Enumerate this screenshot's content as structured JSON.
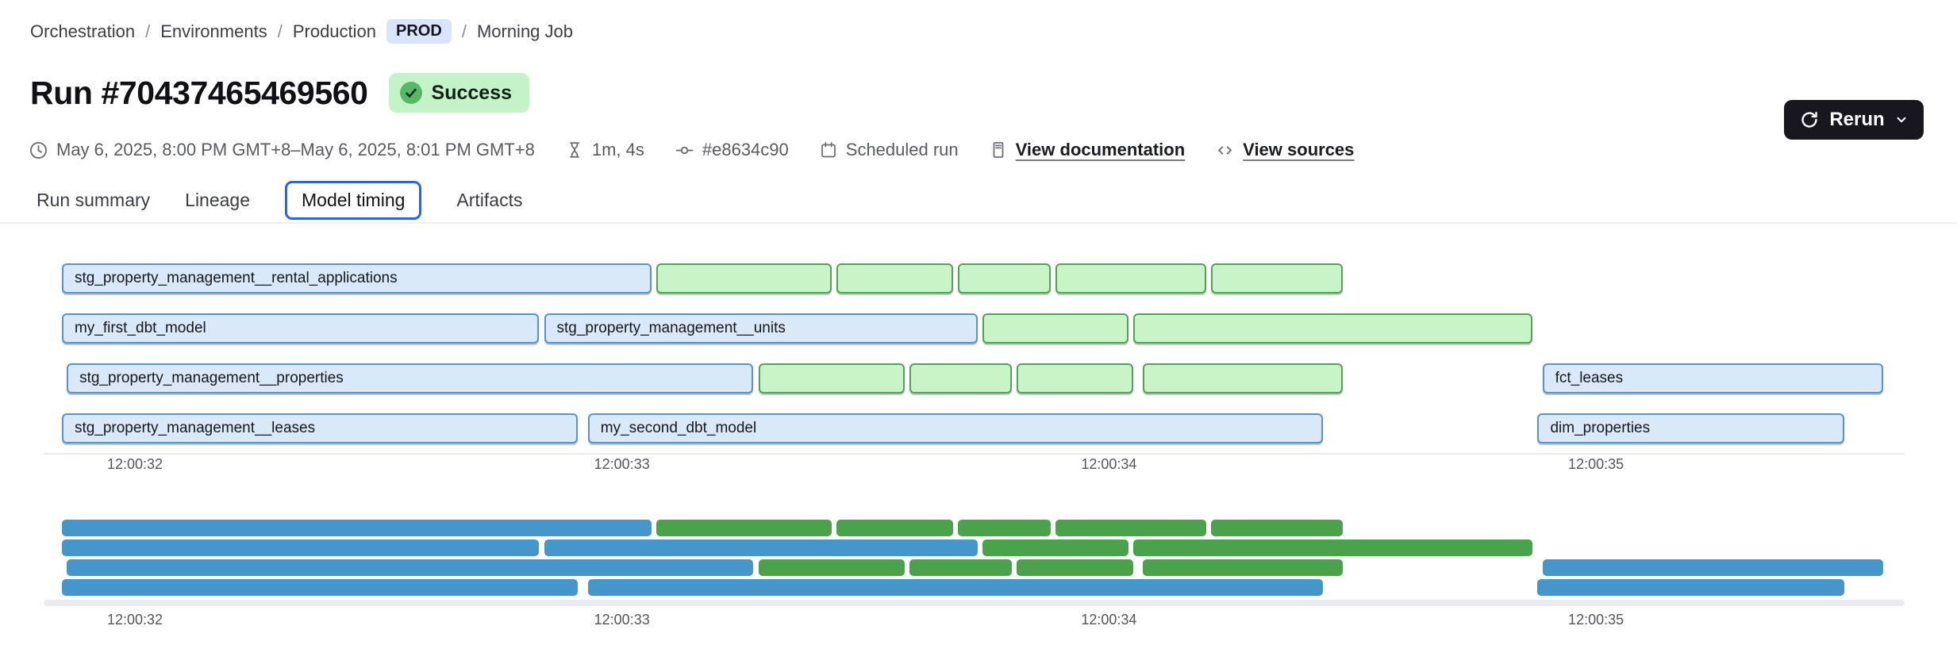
{
  "breadcrumb": {
    "separator": "/",
    "items": [
      "Orchestration",
      "Environments",
      "Production",
      "Morning Job"
    ],
    "env_badge": "PROD"
  },
  "header": {
    "title": "Run #70437465469560",
    "status": "Success"
  },
  "actions": {
    "rerun_label": "Rerun"
  },
  "meta": {
    "time_range": "May 6, 2025, 8:00 PM GMT+8–May 6, 2025, 8:01 PM GMT+8",
    "duration": "1m, 4s",
    "commit": "#e8634c90",
    "trigger": "Scheduled run",
    "docs_link": "View documentation",
    "sources_link": "View sources"
  },
  "tabs": {
    "items": [
      "Run summary",
      "Lineage",
      "Model timing",
      "Artifacts"
    ],
    "active": "Model timing"
  },
  "colors": {
    "accent_blue": "#2b63e1",
    "prod_badge_bg": "#d8e5fb",
    "success_bg": "#c5f3c8",
    "success_icon": "#57b768",
    "rerun_bg": "#17171d",
    "bar_blue_fill": "#d9e9f9",
    "bar_blue_border": "#5694d0",
    "bar_green_fill": "#c9f4c7",
    "bar_green_border": "#55a159",
    "minimap_blue": "#4496cb",
    "minimap_green": "#4aa24a"
  },
  "chart_data": {
    "type": "gantt",
    "title": "Model timing",
    "x_axis": {
      "unit": "seconds offset from 12:00:32",
      "tick_values": [
        0,
        1,
        2,
        3
      ],
      "tick_labels": [
        "12:00:32",
        "12:00:33",
        "12:00:34",
        "12:00:35"
      ],
      "range": [
        -0.19,
        3.64
      ]
    },
    "legend": {
      "blue": "labeled model bar",
      "green": "unlabeled bar"
    },
    "rows": [
      {
        "bars": [
          {
            "label": "stg_property_management__rental_applications",
            "kind": "blue",
            "start": -0.15,
            "end": 1.06
          },
          {
            "label": "",
            "kind": "green",
            "start": 1.07,
            "end": 1.43
          },
          {
            "label": "",
            "kind": "green",
            "start": 1.44,
            "end": 1.68
          },
          {
            "label": "",
            "kind": "green",
            "start": 1.69,
            "end": 1.88
          },
          {
            "label": "",
            "kind": "green",
            "start": 1.89,
            "end": 2.2
          },
          {
            "label": "",
            "kind": "green",
            "start": 2.21,
            "end": 2.48
          }
        ]
      },
      {
        "bars": [
          {
            "label": "my_first_dbt_model",
            "kind": "blue",
            "start": -0.15,
            "end": 0.83
          },
          {
            "label": "stg_property_management__units",
            "kind": "blue",
            "start": 0.84,
            "end": 1.73
          },
          {
            "label": "",
            "kind": "green",
            "start": 1.74,
            "end": 2.04
          },
          {
            "label": "",
            "kind": "green",
            "start": 2.05,
            "end": 2.87
          }
        ]
      },
      {
        "bars": [
          {
            "label": "stg_property_management__properties",
            "kind": "blue",
            "start": -0.14,
            "end": 1.27
          },
          {
            "label": "",
            "kind": "green",
            "start": 1.28,
            "end": 1.58
          },
          {
            "label": "",
            "kind": "green",
            "start": 1.59,
            "end": 1.8
          },
          {
            "label": "",
            "kind": "green",
            "start": 1.81,
            "end": 2.05
          },
          {
            "label": "",
            "kind": "green",
            "start": 2.07,
            "end": 2.48
          },
          {
            "label": "fct_leases",
            "kind": "blue",
            "start": 2.89,
            "end": 3.59
          }
        ]
      },
      {
        "bars": [
          {
            "label": "stg_property_management__leases",
            "kind": "blue",
            "start": -0.15,
            "end": 0.91
          },
          {
            "label": "my_second_dbt_model",
            "kind": "blue",
            "start": 0.93,
            "end": 2.44
          },
          {
            "label": "dim_properties",
            "kind": "blue",
            "start": 2.88,
            "end": 3.51
          }
        ]
      }
    ]
  }
}
